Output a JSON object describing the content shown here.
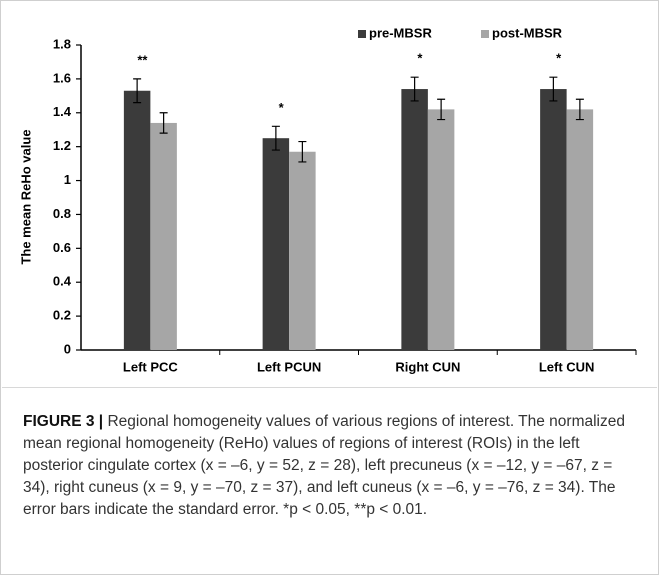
{
  "chart_data": {
    "type": "bar",
    "y_label": "The mean ReHo value",
    "categories": [
      "Left PCC",
      "Left PCUN",
      "Right CUN",
      "Left CUN"
    ],
    "series": [
      {
        "name": "pre-MBSR",
        "color": "#3b3b3b",
        "values": [
          1.53,
          1.25,
          1.54,
          1.54
        ],
        "errors": [
          0.07,
          0.07,
          0.07,
          0.07
        ]
      },
      {
        "name": "post-MBSR",
        "color": "#a6a6a6",
        "values": [
          1.34,
          1.17,
          1.42,
          1.42
        ],
        "errors": [
          0.06,
          0.06,
          0.06,
          0.06
        ]
      }
    ],
    "annotations": [
      "**",
      "*",
      "*",
      "*"
    ],
    "ylim": [
      0,
      1.8
    ],
    "yticks": [
      0,
      0.2,
      0.4,
      0.6,
      0.8,
      1,
      1.2,
      1.4,
      1.6,
      1.8
    ],
    "legend": "top-right"
  },
  "caption": {
    "label": "FIGURE 3 |",
    "text": "Regional homogeneity values of various regions of interest. The normalized mean regional homogeneity (ReHo) values of regions of interest (ROIs) in the left posterior cingulate cortex (x = –6, y = 52, z = 28), left precuneus (x = –12, y = –67, z = 34), right cuneus (x = 9, y = –70, z = 37), and left cuneus (x = –6, y = –76, z = 34). The error bars indicate the standard error. *p < 0.05, **p < 0.01."
  }
}
